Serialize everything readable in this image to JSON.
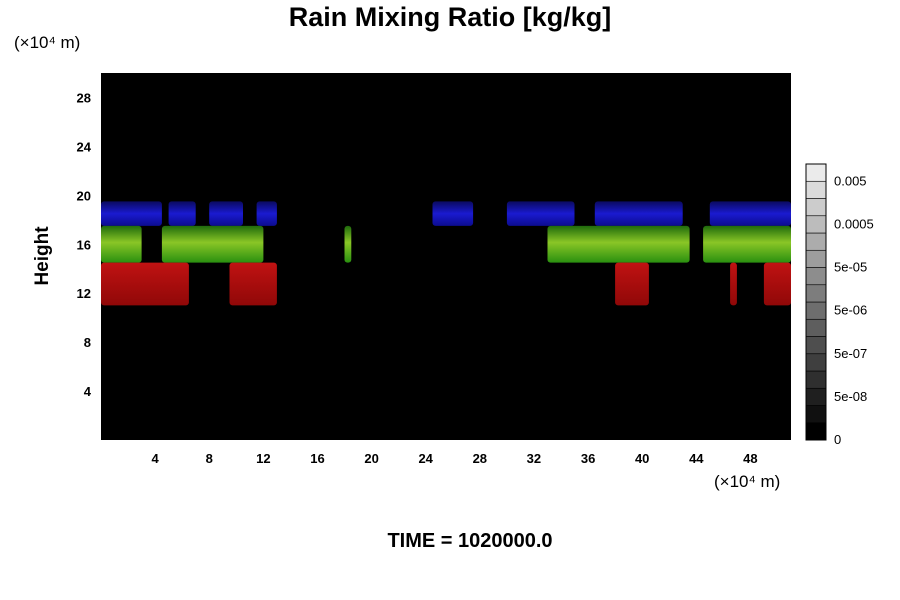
{
  "chart_data": {
    "type": "heatmap",
    "title": "Rain Mixing Ratio [kg/kg]",
    "ylabel": "Height",
    "xlabel": "",
    "x_unit_label": "(×10⁴ m)",
    "y_unit_label": "(×10⁴ m)",
    "xlim": [
      0,
      51
    ],
    "ylim": [
      0,
      30
    ],
    "x_ticks": [
      4,
      8,
      12,
      16,
      20,
      24,
      28,
      32,
      36,
      40,
      44,
      48
    ],
    "y_ticks": [
      4,
      8,
      12,
      16,
      20,
      24,
      28
    ],
    "background_color": "#000000",
    "layers": [
      {
        "color": "#1010c8",
        "y_range": [
          17.5,
          19.5
        ],
        "x_segments": [
          [
            0,
            4.5
          ],
          [
            5,
            7
          ],
          [
            8,
            10.5
          ],
          [
            11.5,
            13
          ],
          [
            24.5,
            27.5
          ],
          [
            30,
            35
          ],
          [
            36.5,
            43
          ],
          [
            45,
            51
          ]
        ]
      },
      {
        "color": "#3c9a14",
        "y_range": [
          14.5,
          17.5
        ],
        "x_segments": [
          [
            0,
            3
          ],
          [
            4.5,
            12
          ],
          [
            18,
            18.5
          ],
          [
            33,
            43.5
          ],
          [
            44.5,
            51
          ]
        ]
      },
      {
        "color": "#c01010",
        "y_range": [
          11,
          14.5
        ],
        "x_segments": [
          [
            0,
            6.5
          ],
          [
            9.5,
            13
          ],
          [
            38,
            40.5
          ],
          [
            46.5,
            47
          ],
          [
            49,
            51
          ]
        ]
      }
    ],
    "colorbar": {
      "tick_labels": [
        "0.005",
        "0.0005",
        "5e-05",
        "5e-06",
        "5e-07",
        "5e-08",
        "0"
      ],
      "levels": 16
    }
  },
  "footer": {
    "time_label": "TIME = 1020000.0"
  }
}
